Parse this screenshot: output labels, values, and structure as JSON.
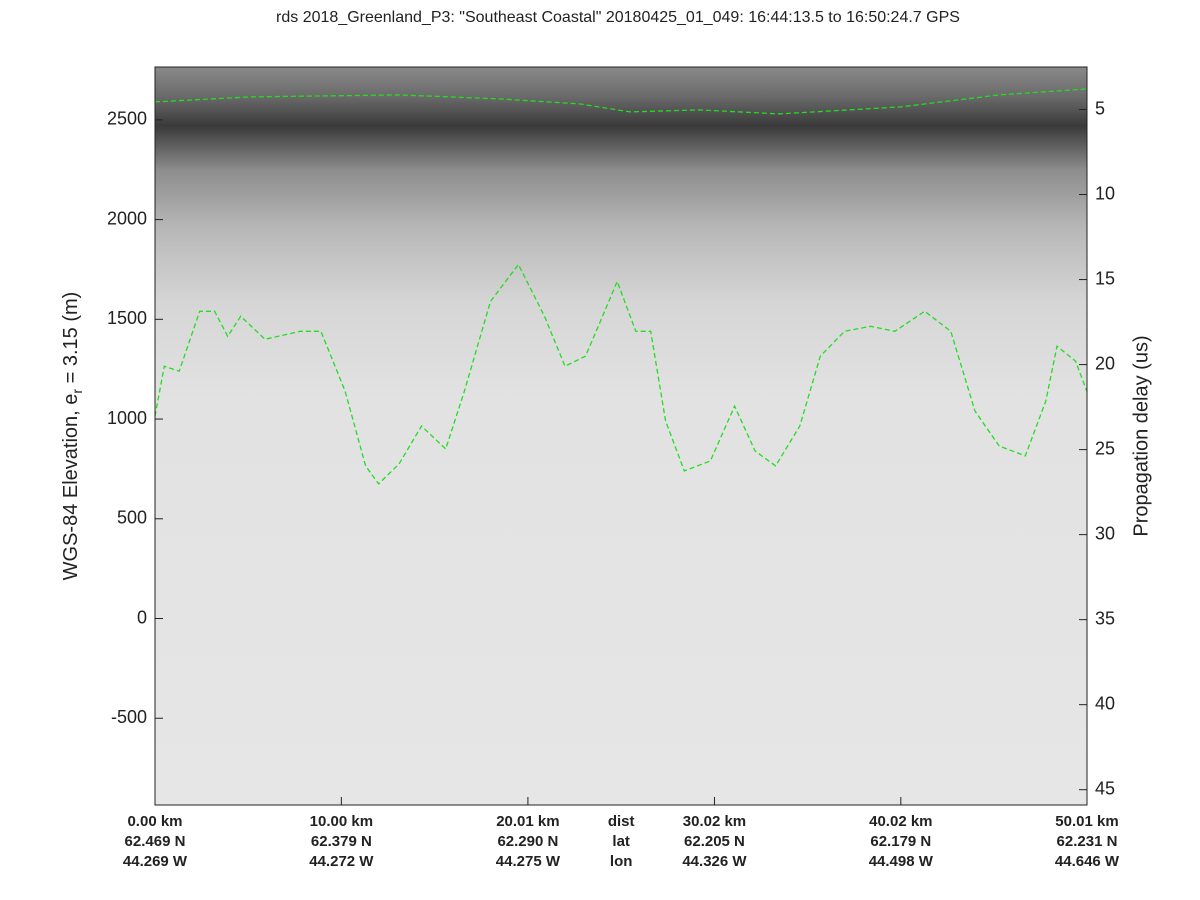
{
  "chart_data": {
    "type": "line",
    "title": "rds 2018_Greenland_P3: \"Southeast Coastal\"  20180425_01_049: 16:44:13.5 to 16:50:24.7 GPS",
    "ylabel": {
      "main": "WGS-84 Elevation, e",
      "sub": "r",
      "rest": " = 3.15 (m)"
    },
    "y2label": "Propagation delay (us)",
    "xlim": [
      0,
      50.01
    ],
    "ylim": [
      -935,
      2765
    ],
    "y2lim": [
      45.9,
      2.5
    ],
    "yticks": [
      -500,
      0,
      500,
      1000,
      1500,
      2000,
      2500
    ],
    "y2ticks": [
      5,
      10,
      15,
      20,
      25,
      30,
      35,
      40,
      45
    ],
    "row_names": [
      "dist",
      "lat",
      "lon"
    ],
    "xticks": [
      {
        "value": 0,
        "label": "0.00 km"
      },
      {
        "value": 10.0,
        "label": "10.00 km"
      },
      {
        "value": 20.01,
        "label": "20.01 km"
      },
      {
        "value": 30.02,
        "label": "30.02 km"
      },
      {
        "value": 40.02,
        "label": "40.02 km"
      },
      {
        "value": 50.01,
        "label": "50.01 km"
      }
    ],
    "lat_labels": [
      "62.469 N",
      "62.379 N",
      "62.290 N",
      "62.205 N",
      "62.179 N",
      "62.231 N"
    ],
    "lon_labels": [
      "44.269 W",
      "44.272 W",
      "44.275 W",
      "44.326 W",
      "44.498 W",
      "44.646 W"
    ],
    "series": [
      {
        "color": "#22dd22",
        "x": [
          0,
          5.1,
          13.1,
          18.5,
          22.8,
          25.5,
          29.2,
          33.5,
          40.0,
          45.3,
          50.0
        ],
        "values": [
          2590,
          2615,
          2625,
          2605,
          2580,
          2540,
          2550,
          2530,
          2565,
          2625,
          2655
        ]
      },
      {
        "color": "#22dd22",
        "x": [
          0,
          0.5,
          1.3,
          2.4,
          3.2,
          3.9,
          4.6,
          5.9,
          7.8,
          8.9,
          10.2,
          11.3,
          12.0,
          13.1,
          14.3,
          15.6,
          16.6,
          18.0,
          19.5,
          20.9,
          22.0,
          23.1,
          23.9,
          24.8,
          25.8,
          26.6,
          27.4,
          28.4,
          29.8,
          31.1,
          32.2,
          33.3,
          34.6,
          35.7,
          37.0,
          38.4,
          39.7,
          41.3,
          42.7,
          44.0,
          45.3,
          46.7,
          47.8,
          48.4,
          49.4,
          50.0
        ],
        "values": [
          1015,
          1265,
          1240,
          1540,
          1540,
          1415,
          1515,
          1400,
          1440,
          1440,
          1140,
          765,
          675,
          775,
          965,
          850,
          1140,
          1590,
          1775,
          1515,
          1265,
          1315,
          1490,
          1690,
          1440,
          1440,
          990,
          740,
          790,
          1065,
          840,
          765,
          965,
          1315,
          1440,
          1465,
          1440,
          1540,
          1440,
          1040,
          865,
          815,
          1090,
          1365,
          1290,
          1140
        ]
      }
    ]
  }
}
